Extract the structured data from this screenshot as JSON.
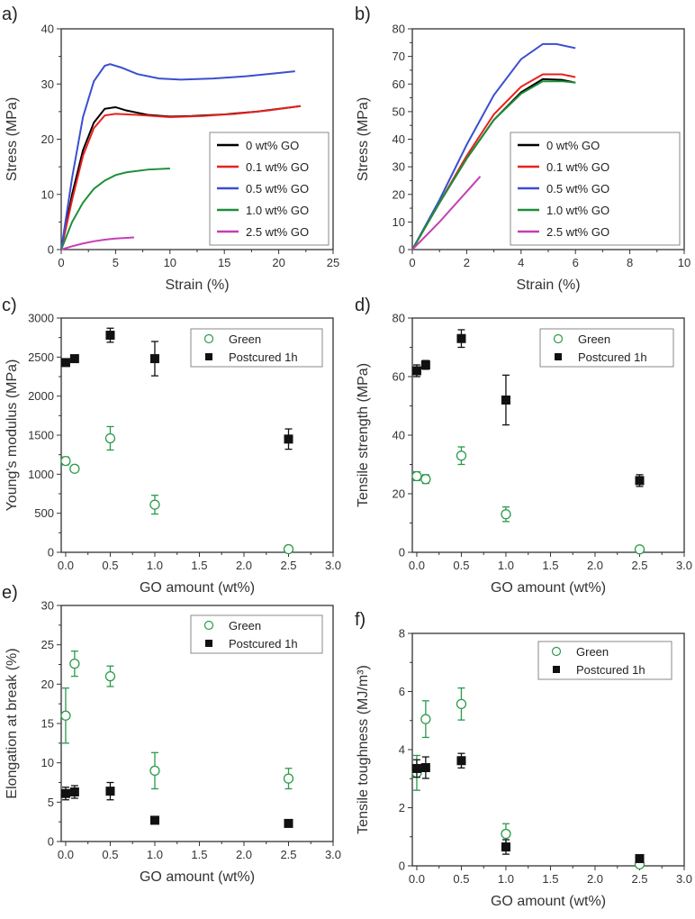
{
  "chart_data": [
    {
      "panel": "a)",
      "type": "line",
      "xlabel": "Strain (%)",
      "ylabel": "Stress (MPa)",
      "xlim": [
        0,
        25
      ],
      "ylim": [
        0,
        40
      ],
      "xticks": [
        0,
        5,
        10,
        15,
        20,
        25
      ],
      "yticks": [
        0,
        10,
        20,
        30,
        40
      ],
      "legend": "bottom-right",
      "series": [
        {
          "name": "0 wt% GO",
          "color": "#000000",
          "points": [
            [
              0,
              0
            ],
            [
              1,
              10
            ],
            [
              2,
              18
            ],
            [
              3,
              23
            ],
            [
              4,
              25.5
            ],
            [
              5,
              25.8
            ],
            [
              6,
              25.2
            ],
            [
              8,
              24.4
            ],
            [
              10,
              24.1
            ],
            [
              12,
              24.2
            ],
            [
              15,
              24.5
            ],
            [
              18,
              25
            ],
            [
              22,
              26
            ]
          ]
        },
        {
          "name": "0.1 wt% GO",
          "color": "#e8211f",
          "points": [
            [
              0,
              0
            ],
            [
              1,
              9
            ],
            [
              2,
              17
            ],
            [
              3,
              22
            ],
            [
              4,
              24.3
            ],
            [
              5,
              24.6
            ],
            [
              7,
              24.4
            ],
            [
              10,
              24.0
            ],
            [
              13,
              24.2
            ],
            [
              16,
              24.6
            ],
            [
              19,
              25.2
            ],
            [
              22,
              26
            ]
          ]
        },
        {
          "name": "0.5 wt% GO",
          "color": "#3a4fd0",
          "points": [
            [
              0,
              0
            ],
            [
              1,
              13
            ],
            [
              2,
              24
            ],
            [
              3,
              30.5
            ],
            [
              4,
              33.3
            ],
            [
              4.5,
              33.6
            ],
            [
              5.5,
              33
            ],
            [
              7,
              31.8
            ],
            [
              9,
              31
            ],
            [
              11,
              30.8
            ],
            [
              14,
              31
            ],
            [
              17,
              31.4
            ],
            [
              20,
              32
            ],
            [
              21.5,
              32.3
            ]
          ]
        },
        {
          "name": "1.0 wt% GO",
          "color": "#1e8f3a",
          "points": [
            [
              0,
              0
            ],
            [
              1,
              5
            ],
            [
              2,
              8.5
            ],
            [
              3,
              11
            ],
            [
              4,
              12.5
            ],
            [
              5,
              13.5
            ],
            [
              6,
              14
            ],
            [
              8,
              14.5
            ],
            [
              10,
              14.7
            ]
          ]
        },
        {
          "name": "2.5 wt% GO",
          "color": "#c43fb5",
          "points": [
            [
              0,
              0
            ],
            [
              1,
              0.6
            ],
            [
              2,
              1.1
            ],
            [
              3,
              1.5
            ],
            [
              4,
              1.8
            ],
            [
              5,
              2.0
            ],
            [
              6.7,
              2.2
            ]
          ]
        }
      ]
    },
    {
      "panel": "b)",
      "type": "line",
      "xlabel": "Strain (%)",
      "ylabel": "Stress (MPa)",
      "xlim": [
        0,
        10
      ],
      "ylim": [
        0,
        80
      ],
      "xticks": [
        0,
        2,
        4,
        6,
        8,
        10
      ],
      "yticks": [
        0,
        10,
        20,
        30,
        40,
        50,
        60,
        70,
        80
      ],
      "legend": "bottom-right",
      "series": [
        {
          "name": "0 wt% GO",
          "color": "#000000",
          "points": [
            [
              0,
              0
            ],
            [
              1,
              17
            ],
            [
              2,
              33
            ],
            [
              3,
              47
            ],
            [
              4,
              57
            ],
            [
              4.8,
              61.8
            ],
            [
              5.5,
              61.5
            ],
            [
              6,
              60.5
            ]
          ]
        },
        {
          "name": "0.1 wt% GO",
          "color": "#e8211f",
          "points": [
            [
              0,
              0
            ],
            [
              1,
              17
            ],
            [
              2,
              34
            ],
            [
              3,
              49
            ],
            [
              4,
              59
            ],
            [
              4.8,
              63.5
            ],
            [
              5.5,
              63.5
            ],
            [
              6,
              62.5
            ]
          ]
        },
        {
          "name": "0.5 wt% GO",
          "color": "#3a4fd0",
          "points": [
            [
              0,
              0
            ],
            [
              1,
              18
            ],
            [
              2,
              38
            ],
            [
              3,
              56
            ],
            [
              4,
              69
            ],
            [
              4.8,
              74.5
            ],
            [
              5.3,
              74.5
            ],
            [
              6,
              73
            ]
          ]
        },
        {
          "name": "1.0 wt% GO",
          "color": "#1e8f3a",
          "points": [
            [
              0,
              0
            ],
            [
              1,
              17
            ],
            [
              2,
              33
            ],
            [
              3,
              47
            ],
            [
              4,
              56.5
            ],
            [
              4.8,
              61
            ],
            [
              5.5,
              61
            ],
            [
              6,
              60.5
            ]
          ]
        },
        {
          "name": "2.5 wt% GO",
          "color": "#c43fb5",
          "points": [
            [
              0,
              0
            ],
            [
              1,
              10
            ],
            [
              2,
              21
            ],
            [
              2.5,
              26.5
            ]
          ]
        }
      ]
    },
    {
      "panel": "c)",
      "type": "scatter",
      "xlabel": "GO amount (wt%)",
      "ylabel": "Young's modulus (MPa)",
      "xlim": [
        -0.05,
        3.0
      ],
      "ylim": [
        0,
        3000
      ],
      "xticks": [
        "0.0",
        "0.5",
        "1.0",
        "1.5",
        "2.0",
        "2.5",
        "3.0"
      ],
      "yticks": [
        0,
        500,
        1000,
        1500,
        2000,
        2500,
        3000
      ],
      "legend": "top-right",
      "series": [
        {
          "name": "Green",
          "marker": "open-circle",
          "color": "#2a9a4a",
          "x": [
            0,
            0.1,
            0.5,
            1.0,
            2.5
          ],
          "y": [
            1170,
            1070,
            1460,
            610,
            40
          ],
          "err": [
            50,
            40,
            150,
            120,
            30
          ]
        },
        {
          "name": "Postcured 1h",
          "marker": "filled-square",
          "color": "#111111",
          "x": [
            0,
            0.1,
            0.5,
            1.0,
            2.5
          ],
          "y": [
            2430,
            2480,
            2780,
            2480,
            1450
          ],
          "err": [
            40,
            30,
            90,
            220,
            130
          ]
        }
      ]
    },
    {
      "panel": "d)",
      "type": "scatter",
      "xlabel": "GO amount (wt%)",
      "ylabel": "Tensile strength (MPa)",
      "xlim": [
        -0.05,
        3.0
      ],
      "ylim": [
        0,
        80
      ],
      "xticks": [
        "0.0",
        "0.5",
        "1.0",
        "1.5",
        "2.0",
        "2.5",
        "3.0"
      ],
      "yticks": [
        0,
        20,
        40,
        60,
        80
      ],
      "legend": "top-right",
      "series": [
        {
          "name": "Green",
          "marker": "open-circle",
          "color": "#2a9a4a",
          "x": [
            0,
            0.1,
            0.5,
            1.0,
            2.5
          ],
          "y": [
            26,
            25,
            33,
            13,
            1
          ],
          "err": [
            1.5,
            1.5,
            3,
            2.5,
            1
          ]
        },
        {
          "name": "Postcured 1h",
          "marker": "filled-square",
          "color": "#111111",
          "x": [
            0,
            0.1,
            0.5,
            1.0,
            2.5
          ],
          "y": [
            62,
            64,
            73,
            52,
            24.5
          ],
          "err": [
            2,
            1.5,
            3,
            8.5,
            2
          ]
        }
      ]
    },
    {
      "panel": "e)",
      "type": "scatter",
      "xlabel": "GO amount (wt%)",
      "ylabel": "Elongation at break (%)",
      "xlim": [
        -0.05,
        3.0
      ],
      "ylim": [
        0,
        30
      ],
      "xticks": [
        "0.0",
        "0.5",
        "1.0",
        "1.5",
        "2.0",
        "2.5",
        "3.0"
      ],
      "yticks": [
        0,
        5,
        10,
        15,
        20,
        25,
        30
      ],
      "legend": "top-right",
      "series": [
        {
          "name": "Green",
          "marker": "open-circle",
          "color": "#2a9a4a",
          "x": [
            0,
            0.1,
            0.5,
            1.0,
            2.5
          ],
          "y": [
            16,
            22.6,
            21,
            9,
            8
          ],
          "err": [
            3.5,
            1.6,
            1.3,
            2.3,
            1.3
          ]
        },
        {
          "name": "Postcured 1h",
          "marker": "filled-square",
          "color": "#111111",
          "x": [
            0,
            0.1,
            0.5,
            1.0,
            2.5
          ],
          "y": [
            6.1,
            6.3,
            6.4,
            2.7,
            2.3
          ],
          "err": [
            0.8,
            0.8,
            1.1,
            0,
            0
          ]
        }
      ]
    },
    {
      "panel": "f)",
      "type": "scatter",
      "xlabel": "GO amount (wt%)",
      "ylabel": "Tensile toughness (MJ/m³)",
      "xlim": [
        -0.05,
        3.0
      ],
      "ylim": [
        0,
        8
      ],
      "xticks": [
        "0.0",
        "0.5",
        "1.0",
        "1.5",
        "2.0",
        "2.5",
        "3.0"
      ],
      "yticks": [
        0,
        2,
        4,
        6,
        8
      ],
      "legend": "top-right",
      "series": [
        {
          "name": "Green",
          "marker": "open-circle",
          "color": "#2a9a4a",
          "x": [
            0,
            0.1,
            0.5,
            1.0,
            2.5
          ],
          "y": [
            3.2,
            5.05,
            5.57,
            1.1,
            0.05
          ],
          "err": [
            0.6,
            0.63,
            0.55,
            0.35,
            0
          ]
        },
        {
          "name": "Postcured 1h",
          "marker": "filled-square",
          "color": "#111111",
          "x": [
            0,
            0.1,
            0.5,
            1.0,
            2.5
          ],
          "y": [
            3.35,
            3.38,
            3.62,
            0.65,
            0.25
          ],
          "err": [
            0.3,
            0.37,
            0.25,
            0.25,
            0
          ]
        }
      ]
    }
  ]
}
